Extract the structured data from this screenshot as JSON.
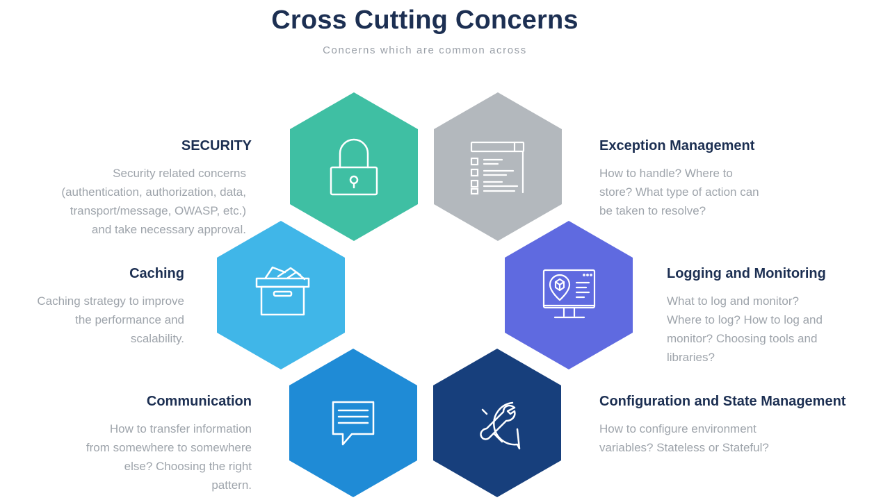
{
  "header": {
    "title": "Cross Cutting Concerns",
    "subtitle": "Concerns which are common across"
  },
  "concerns": {
    "security": {
      "title": "SECURITY",
      "lines": [
        "Security related concerns",
        "(authentication, authorization, data,",
        "transport/message, OWASP,  etc.)",
        "and take necessary approval."
      ],
      "color": "#3fbfa3",
      "icon": "lock-icon"
    },
    "exception": {
      "title": "Exception Management",
      "lines": [
        "How to handle? Where to",
        "store? What type of action can",
        "be taken to resolve?"
      ],
      "color": "#b3b8bd",
      "icon": "checklist-icon"
    },
    "caching": {
      "title": "Caching",
      "lines": [
        "Caching strategy to improve",
        "the performance and",
        "scalability."
      ],
      "color": "#40b6e8",
      "icon": "archive-box-icon"
    },
    "logging": {
      "title": "Logging and Monitoring",
      "lines": [
        "What to log and monitor?",
        "Where to log? How to log and",
        "monitor? Choosing tools and",
        "libraries?"
      ],
      "color": "#5f6ae0",
      "icon": "monitor-icon"
    },
    "communication": {
      "title": "Communication",
      "lines": [
        "How to transfer information",
        "from somewhere to somewhere",
        "else? Choosing the right",
        "pattern."
      ],
      "color": "#1f8bd6",
      "icon": "chat-bubble-icon"
    },
    "config": {
      "title": "Configuration and State Management",
      "lines": [
        "How to configure environment",
        "variables? Stateless or Stateful?"
      ],
      "color": "#173f7c",
      "icon": "wrench-icon"
    }
  }
}
